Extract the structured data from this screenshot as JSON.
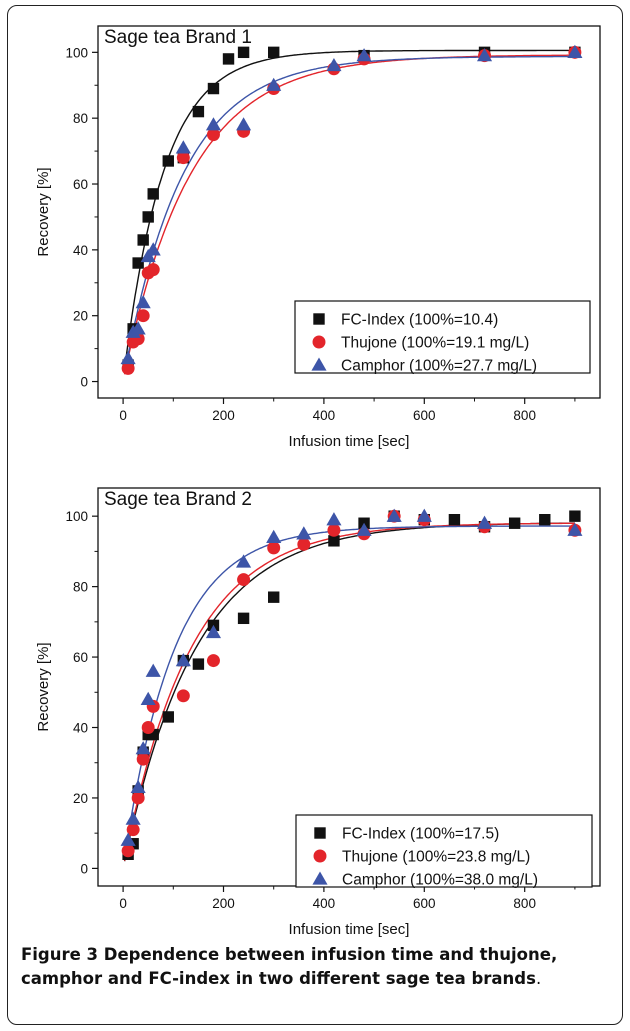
{
  "figure": {
    "label": "Figure 3",
    "caption_bold": "Dependence between infusion time and thujone, camphor and FC-index in two different sage tea brands",
    "caption_tail": "."
  },
  "colors": {
    "fc": "#111111",
    "thujone": "#e3252b",
    "camphor": "#3d55a8"
  },
  "chart_data": [
    {
      "type": "scatter",
      "title": "Sage tea Brand 1",
      "xlabel": "Infusion time [sec]",
      "ylabel": "Recovery [%]",
      "xlim": [
        -50,
        950
      ],
      "ylim": [
        -5,
        108
      ],
      "xticks": [
        0,
        200,
        400,
        600,
        800
      ],
      "yticks": [
        0,
        20,
        40,
        60,
        80,
        100
      ],
      "legend_position": "bottom-right",
      "series": [
        {
          "name": "FC-Index (100%=10.4)",
          "marker": "square",
          "x": [
            10,
            20,
            30,
            40,
            50,
            60,
            90,
            120,
            150,
            180,
            210,
            240,
            300,
            480,
            720,
            900
          ],
          "y": [
            5,
            16,
            36,
            43,
            50,
            57,
            67,
            68,
            82,
            89,
            98,
            100,
            100,
            99,
            100,
            100
          ]
        },
        {
          "name": "Thujone (100%=19.1 mg/L)",
          "marker": "circle",
          "x": [
            10,
            20,
            30,
            40,
            50,
            60,
            120,
            180,
            240,
            300,
            420,
            480,
            720,
            900
          ],
          "y": [
            4,
            12,
            13,
            20,
            33,
            34,
            68,
            75,
            76,
            89,
            95,
            98,
            99,
            100
          ]
        },
        {
          "name": "Camphor (100%=27.7 mg/L)",
          "marker": "triangle",
          "x": [
            10,
            20,
            30,
            40,
            50,
            60,
            120,
            180,
            240,
            300,
            420,
            480,
            720,
            900
          ],
          "y": [
            7,
            15,
            16,
            24,
            38,
            40,
            71,
            78,
            78,
            90,
            96,
            99,
            99,
            100
          ]
        }
      ]
    },
    {
      "type": "scatter",
      "title": "Sage tea Brand 2",
      "xlabel": "Infusion time [sec]",
      "ylabel": "Recovery [%]",
      "xlim": [
        -50,
        950
      ],
      "ylim": [
        -5,
        108
      ],
      "xticks": [
        0,
        200,
        400,
        600,
        800
      ],
      "yticks": [
        0,
        20,
        40,
        60,
        80,
        100
      ],
      "legend_position": "bottom-right",
      "series": [
        {
          "name": "FC-Index (100%=17.5)",
          "marker": "square",
          "x": [
            10,
            20,
            30,
            40,
            50,
            60,
            90,
            120,
            150,
            180,
            240,
            300,
            420,
            480,
            540,
            600,
            660,
            720,
            780,
            840,
            900
          ],
          "y": [
            4,
            7,
            22,
            33,
            38,
            38,
            43,
            59,
            58,
            69,
            71,
            77,
            93,
            98,
            100,
            99,
            99,
            97,
            98,
            99,
            100
          ]
        },
        {
          "name": "Thujone (100%=23.8 mg/L)",
          "marker": "circle",
          "x": [
            10,
            20,
            30,
            40,
            50,
            60,
            120,
            180,
            240,
            300,
            360,
            420,
            480,
            540,
            600,
            720,
            900
          ],
          "y": [
            5,
            11,
            20,
            31,
            40,
            46,
            49,
            59,
            82,
            91,
            92,
            96,
            95,
            100,
            99,
            97,
            96
          ]
        },
        {
          "name": "Camphor (100%=38.0 mg/L)",
          "marker": "triangle",
          "x": [
            10,
            20,
            30,
            40,
            50,
            60,
            120,
            180,
            240,
            300,
            360,
            420,
            480,
            540,
            600,
            720,
            900
          ],
          "y": [
            8,
            14,
            23,
            34,
            48,
            56,
            59,
            67,
            87,
            94,
            95,
            99,
            96,
            100,
            100,
            98,
            96
          ]
        }
      ]
    }
  ]
}
